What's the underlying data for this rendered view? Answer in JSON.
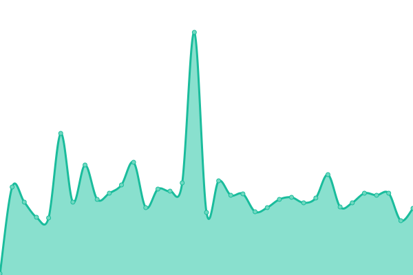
{
  "chart_data": {
    "type": "area",
    "title": "",
    "xlabel": "",
    "ylabel": "",
    "ylim": [
      0,
      400
    ],
    "grid": false,
    "legend": "none",
    "smooth": true,
    "colors": {
      "line": "#1abc9c",
      "fill": "#89e0ce",
      "point": "#6fd8c0"
    },
    "series": [
      {
        "values": [
          2,
          128,
          106,
          84,
          83,
          206,
          106,
          160,
          110,
          119,
          131,
          164,
          98,
          125,
          122,
          134,
          353,
          91,
          137,
          116,
          118,
          92,
          98,
          110,
          113,
          105,
          112,
          146,
          99,
          105,
          119,
          116,
          119,
          79,
          97
        ]
      }
    ]
  }
}
